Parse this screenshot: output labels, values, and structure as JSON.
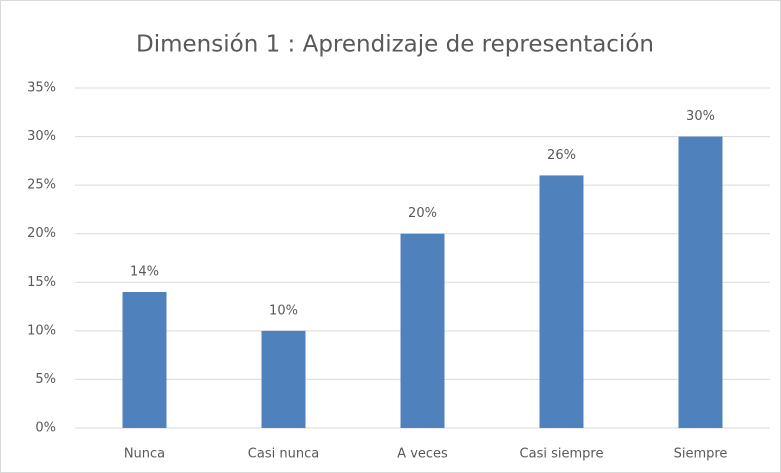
{
  "chart_data": {
    "type": "bar",
    "title": "Dimensión 1 : Aprendizaje de representación",
    "categories": [
      "Nunca",
      "Casi nunca",
      "A veces",
      "Casi siempre",
      "Siempre"
    ],
    "values": [
      14,
      10,
      20,
      26,
      30
    ],
    "value_labels": [
      "14%",
      "10%",
      "20%",
      "26%",
      "30%"
    ],
    "color": "#4f81bd",
    "ylim": [
      0,
      35
    ],
    "yticks": [
      {
        "value": 0,
        "label": "0%"
      },
      {
        "value": 5,
        "label": "5%"
      },
      {
        "value": 10,
        "label": "10%"
      },
      {
        "value": 15,
        "label": "15%"
      },
      {
        "value": 20,
        "label": "20%"
      },
      {
        "value": 25,
        "label": "25%"
      },
      {
        "value": 30,
        "label": "30%"
      },
      {
        "value": 35,
        "label": "35%"
      }
    ],
    "grid": true
  }
}
